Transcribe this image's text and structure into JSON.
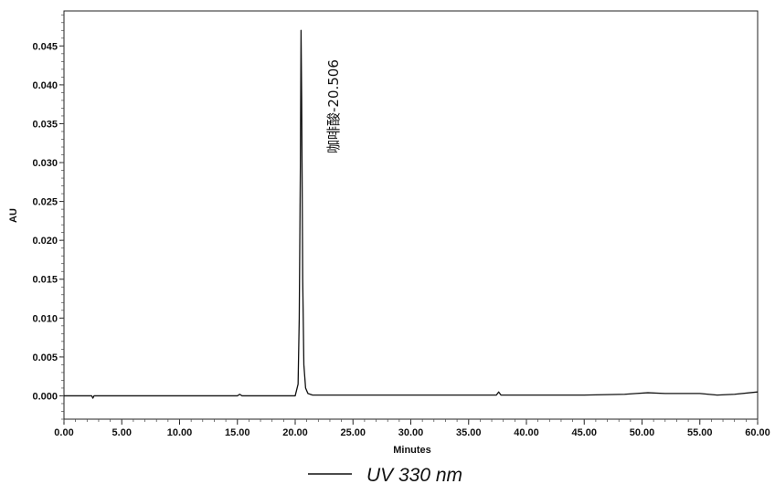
{
  "chart_data": {
    "type": "line",
    "title": "",
    "xlabel": "Minutes",
    "ylabel": "AU",
    "xlim": [
      0,
      60
    ],
    "ylim": [
      -0.003,
      0.0495
    ],
    "x_ticks": [
      "0.00",
      "5.00",
      "10.00",
      "15.00",
      "20.00",
      "25.00",
      "30.00",
      "35.00",
      "40.00",
      "45.00",
      "50.00",
      "55.00",
      "60.00"
    ],
    "y_ticks": [
      "0.000",
      "0.005",
      "0.010",
      "0.015",
      "0.020",
      "0.025",
      "0.030",
      "0.035",
      "0.040",
      "0.045"
    ],
    "grid": false,
    "legend": {
      "position": "bottom-center",
      "label": "UV 330 nm"
    },
    "series": [
      {
        "name": "UV 330 nm",
        "color": "#111111",
        "x": [
          0.0,
          2.4,
          2.5,
          2.6,
          5.0,
          10.0,
          15.0,
          15.2,
          15.4,
          19.5,
          20.0,
          20.25,
          20.35,
          20.45,
          20.506,
          20.56,
          20.65,
          20.75,
          20.9,
          21.1,
          21.5,
          25.0,
          30.0,
          35.0,
          37.4,
          37.6,
          37.8,
          40.0,
          45.0,
          48.5,
          49.5,
          50.5,
          52.0,
          55.0,
          56.5,
          58.0,
          60.0
        ],
        "y": [
          0.0,
          0.0,
          -0.0003,
          0.0,
          0.0,
          0.0,
          0.0,
          0.0002,
          0.0,
          0.0,
          0.0,
          0.0015,
          0.01,
          0.03,
          0.047,
          0.038,
          0.015,
          0.004,
          0.001,
          0.0003,
          0.0001,
          0.0001,
          0.0001,
          0.0001,
          0.0001,
          0.0005,
          0.0001,
          0.0001,
          0.0001,
          0.0002,
          0.0003,
          0.0004,
          0.0003,
          0.0003,
          0.0001,
          0.0002,
          0.0005
        ]
      }
    ],
    "annotations": [
      {
        "text": "咖啡酸-20.506",
        "x": 20.506,
        "y": 0.047
      }
    ]
  }
}
